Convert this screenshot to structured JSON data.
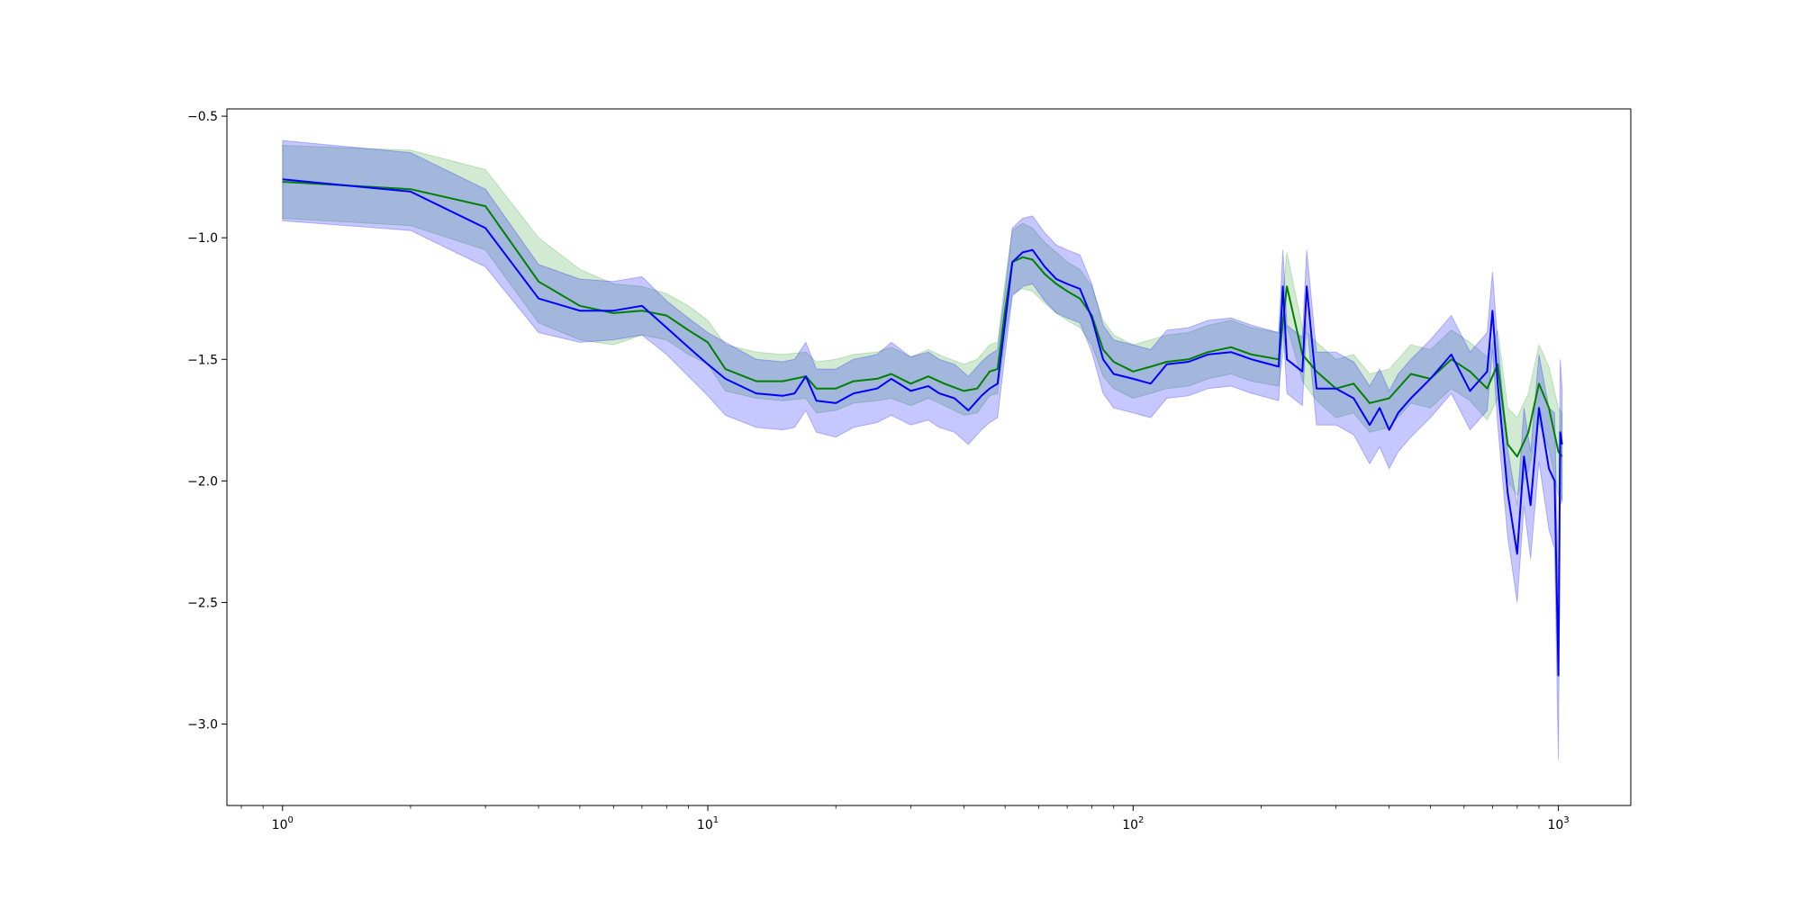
{
  "chart_data": {
    "type": "line",
    "title": "",
    "xlabel": "",
    "ylabel": "",
    "xscale": "log",
    "xlim": [
      0.74,
      1480
    ],
    "ylim": [
      -3.335,
      -0.47
    ],
    "grid": false,
    "legend": null,
    "x_ticks": [
      {
        "value": 1,
        "base": "10",
        "exp": "0"
      },
      {
        "value": 10,
        "base": "10",
        "exp": "1"
      },
      {
        "value": 100,
        "base": "10",
        "exp": "2"
      },
      {
        "value": 1000,
        "base": "10",
        "exp": "3"
      }
    ],
    "y_ticks": [
      {
        "value": -0.5,
        "label": "−0.5"
      },
      {
        "value": -1.0,
        "label": "−1.0"
      },
      {
        "value": -1.5,
        "label": "−1.5"
      },
      {
        "value": -2.0,
        "label": "−2.0"
      },
      {
        "value": -2.5,
        "label": "−2.5"
      },
      {
        "value": -3.0,
        "label": "−3.0"
      }
    ],
    "series": [
      {
        "color": "#008000",
        "band_color": "#2ca02c",
        "x": [
          1,
          2,
          3,
          4,
          5,
          6,
          7,
          8,
          9,
          10,
          11,
          13,
          15,
          17,
          18,
          20,
          22,
          25,
          27,
          30,
          33,
          36,
          40,
          43,
          46,
          48,
          50,
          52,
          55,
          58,
          62,
          66,
          70,
          75,
          80,
          85,
          90,
          100,
          110,
          120,
          135,
          150,
          170,
          190,
          220,
          230,
          250,
          270,
          300,
          330,
          360,
          400,
          450,
          500,
          560,
          620,
          680,
          720,
          760,
          800,
          850,
          900,
          950,
          1000,
          1020
        ],
        "y": [
          -0.77,
          -0.8,
          -0.87,
          -1.18,
          -1.28,
          -1.31,
          -1.3,
          -1.32,
          -1.38,
          -1.43,
          -1.54,
          -1.59,
          -1.59,
          -1.57,
          -1.62,
          -1.62,
          -1.59,
          -1.58,
          -1.56,
          -1.6,
          -1.57,
          -1.6,
          -1.63,
          -1.62,
          -1.55,
          -1.54,
          -1.3,
          -1.1,
          -1.08,
          -1.09,
          -1.15,
          -1.19,
          -1.22,
          -1.25,
          -1.32,
          -1.46,
          -1.51,
          -1.55,
          -1.53,
          -1.51,
          -1.5,
          -1.47,
          -1.45,
          -1.48,
          -1.5,
          -1.2,
          -1.48,
          -1.55,
          -1.62,
          -1.6,
          -1.68,
          -1.66,
          -1.56,
          -1.58,
          -1.5,
          -1.55,
          -1.62,
          -1.52,
          -1.85,
          -1.9,
          -1.8,
          -1.6,
          -1.7,
          -1.88,
          -1.9
        ],
        "lower": [
          -0.92,
          -0.95,
          -1.05,
          -1.35,
          -1.42,
          -1.44,
          -1.4,
          -1.42,
          -1.48,
          -1.52,
          -1.63,
          -1.66,
          -1.67,
          -1.66,
          -1.72,
          -1.71,
          -1.68,
          -1.67,
          -1.66,
          -1.69,
          -1.66,
          -1.69,
          -1.73,
          -1.72,
          -1.65,
          -1.64,
          -1.42,
          -1.23,
          -1.21,
          -1.22,
          -1.27,
          -1.31,
          -1.34,
          -1.37,
          -1.44,
          -1.57,
          -1.62,
          -1.66,
          -1.64,
          -1.62,
          -1.61,
          -1.58,
          -1.56,
          -1.59,
          -1.61,
          -1.36,
          -1.59,
          -1.67,
          -1.74,
          -1.72,
          -1.8,
          -1.78,
          -1.68,
          -1.7,
          -1.62,
          -1.67,
          -1.75,
          -1.66,
          -2.0,
          -2.06,
          -1.96,
          -1.76,
          -1.87,
          -2.06,
          -2.08
        ],
        "upper": [
          -0.62,
          -0.64,
          -0.72,
          -1.0,
          -1.13,
          -1.19,
          -1.2,
          -1.23,
          -1.28,
          -1.34,
          -1.44,
          -1.47,
          -1.48,
          -1.47,
          -1.51,
          -1.5,
          -1.48,
          -1.47,
          -1.45,
          -1.49,
          -1.46,
          -1.49,
          -1.52,
          -1.5,
          -1.44,
          -1.43,
          -1.18,
          -0.97,
          -0.94,
          -0.96,
          -1.02,
          -1.06,
          -1.1,
          -1.13,
          -1.2,
          -1.34,
          -1.4,
          -1.44,
          -1.42,
          -1.4,
          -1.39,
          -1.36,
          -1.34,
          -1.37,
          -1.39,
          -1.06,
          -1.37,
          -1.43,
          -1.5,
          -1.48,
          -1.56,
          -1.54,
          -1.44,
          -1.46,
          -1.38,
          -1.43,
          -1.49,
          -1.38,
          -1.7,
          -1.74,
          -1.64,
          -1.44,
          -1.53,
          -1.7,
          -1.72
        ]
      },
      {
        "color": "#0000ff",
        "band_color": "#0000ff",
        "x": [
          1,
          2,
          3,
          4,
          5,
          6,
          7,
          8,
          9,
          10,
          11,
          13,
          15,
          16,
          17,
          18,
          20,
          22,
          25,
          27,
          30,
          33,
          35,
          38,
          41,
          44,
          46,
          48,
          50,
          52,
          55,
          58,
          62,
          66,
          70,
          75,
          80,
          85,
          90,
          100,
          110,
          120,
          135,
          150,
          170,
          190,
          220,
          225,
          230,
          250,
          256,
          270,
          300,
          330,
          360,
          380,
          400,
          420,
          450,
          500,
          560,
          620,
          680,
          700,
          720,
          760,
          800,
          830,
          860,
          900,
          950,
          980,
          1000,
          1010,
          1020
        ],
        "y": [
          -0.76,
          -0.81,
          -0.96,
          -1.25,
          -1.3,
          -1.3,
          -1.28,
          -1.37,
          -1.45,
          -1.52,
          -1.58,
          -1.64,
          -1.65,
          -1.64,
          -1.57,
          -1.67,
          -1.68,
          -1.64,
          -1.62,
          -1.58,
          -1.63,
          -1.61,
          -1.64,
          -1.66,
          -1.71,
          -1.65,
          -1.62,
          -1.6,
          -1.35,
          -1.1,
          -1.06,
          -1.05,
          -1.12,
          -1.17,
          -1.19,
          -1.21,
          -1.33,
          -1.5,
          -1.56,
          -1.58,
          -1.6,
          -1.52,
          -1.51,
          -1.48,
          -1.47,
          -1.5,
          -1.53,
          -1.2,
          -1.5,
          -1.55,
          -1.2,
          -1.62,
          -1.62,
          -1.66,
          -1.77,
          -1.7,
          -1.79,
          -1.72,
          -1.66,
          -1.58,
          -1.48,
          -1.63,
          -1.55,
          -1.3,
          -1.6,
          -2.05,
          -2.3,
          -1.9,
          -2.1,
          -1.7,
          -1.95,
          -2.0,
          -2.8,
          -1.8,
          -1.85
        ],
        "lower": [
          -0.93,
          -0.97,
          -1.12,
          -1.39,
          -1.43,
          -1.42,
          -1.4,
          -1.48,
          -1.57,
          -1.65,
          -1.73,
          -1.78,
          -1.79,
          -1.78,
          -1.71,
          -1.8,
          -1.82,
          -1.78,
          -1.76,
          -1.73,
          -1.77,
          -1.75,
          -1.78,
          -1.8,
          -1.85,
          -1.79,
          -1.76,
          -1.74,
          -1.48,
          -1.24,
          -1.2,
          -1.19,
          -1.26,
          -1.31,
          -1.33,
          -1.35,
          -1.47,
          -1.64,
          -1.7,
          -1.72,
          -1.74,
          -1.66,
          -1.65,
          -1.62,
          -1.61,
          -1.64,
          -1.67,
          -1.35,
          -1.64,
          -1.69,
          -1.35,
          -1.77,
          -1.77,
          -1.81,
          -1.93,
          -1.86,
          -1.95,
          -1.88,
          -1.82,
          -1.74,
          -1.64,
          -1.79,
          -1.71,
          -1.46,
          -1.77,
          -2.23,
          -2.5,
          -2.1,
          -2.32,
          -1.92,
          -2.2,
          -2.28,
          -3.15,
          -2.1,
          -2.08
        ],
        "upper": [
          -0.6,
          -0.65,
          -0.8,
          -1.11,
          -1.17,
          -1.18,
          -1.16,
          -1.26,
          -1.33,
          -1.39,
          -1.43,
          -1.5,
          -1.51,
          -1.5,
          -1.43,
          -1.54,
          -1.54,
          -1.5,
          -1.48,
          -1.43,
          -1.49,
          -1.47,
          -1.5,
          -1.52,
          -1.57,
          -1.51,
          -1.48,
          -1.46,
          -1.22,
          -0.96,
          -0.92,
          -0.91,
          -0.98,
          -1.03,
          -1.05,
          -1.07,
          -1.19,
          -1.36,
          -1.42,
          -1.44,
          -1.46,
          -1.38,
          -1.37,
          -1.34,
          -1.33,
          -1.36,
          -1.39,
          -1.05,
          -1.36,
          -1.41,
          -1.05,
          -1.47,
          -1.47,
          -1.51,
          -1.61,
          -1.54,
          -1.63,
          -1.56,
          -1.5,
          -1.42,
          -1.32,
          -1.47,
          -1.39,
          -1.14,
          -1.43,
          -1.87,
          -2.1,
          -1.7,
          -1.88,
          -1.48,
          -1.7,
          -1.72,
          -2.45,
          -1.5,
          -1.62
        ]
      }
    ]
  }
}
